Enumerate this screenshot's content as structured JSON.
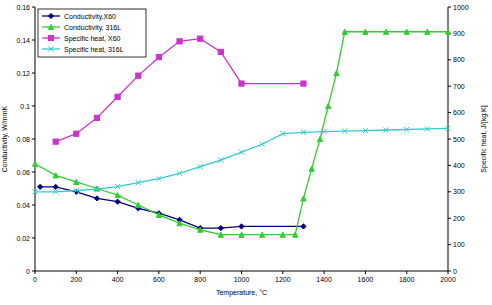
{
  "chart_data": {
    "type": "line",
    "x_label": "Temperature, °C",
    "y_label": "Conductivity, W/mmK",
    "y2_label": "Specific heat, J/[kg.K]",
    "xlim": [
      0,
      2000
    ],
    "xticks": [
      0,
      200,
      400,
      600,
      800,
      1000,
      1200,
      1400,
      1600,
      1800,
      2000
    ],
    "ylim": [
      0,
      0.16
    ],
    "yticks": [
      0,
      0.02,
      0.04,
      0.06,
      0.08,
      0.1,
      0.12,
      0.14,
      0.16
    ],
    "y2lim": [
      0,
      1000
    ],
    "y2ticks": [
      0,
      100,
      200,
      300,
      400,
      500,
      600,
      700,
      800,
      900,
      1000
    ],
    "legend": "upper-left",
    "grid": false,
    "series": [
      {
        "name": "Conductivity,X60",
        "color": "#000080",
        "marker": "diamond",
        "line_style": "solid",
        "x": [
          25,
          100,
          200,
          300,
          400,
          500,
          600,
          700,
          800,
          900,
          1000,
          1300
        ],
        "values": [
          0.051,
          0.051,
          0.048,
          0.044,
          0.042,
          0.038,
          0.035,
          0.031,
          0.026,
          0.026,
          0.027,
          0.027
        ]
      },
      {
        "name": "Conductivity, 316L",
        "color": "#33cc33",
        "marker": "triangle",
        "line_style": "solid",
        "x": [
          0,
          100,
          200,
          300,
          400,
          500,
          600,
          700,
          800,
          900,
          1000,
          1100,
          1200,
          1260,
          1300,
          1340,
          1380,
          1420,
          1460,
          1500,
          1600,
          1700,
          1800,
          1900,
          2000
        ],
        "values": [
          0.065,
          0.058,
          0.054,
          0.05,
          0.046,
          0.04,
          0.034,
          0.029,
          0.025,
          0.022,
          0.022,
          0.022,
          0.022,
          0.022,
          0.044,
          0.062,
          0.08,
          0.1,
          0.12,
          0.145,
          0.145,
          0.145,
          0.145,
          0.145,
          0.145
        ]
      },
      {
        "name": "Specific heat, X60",
        "color": "#cc33cc",
        "marker": "square",
        "line_style": "solid",
        "axis": "y2",
        "x": [
          100,
          200,
          300,
          400,
          500,
          600,
          700,
          800,
          900,
          1000,
          1300
        ],
        "values": [
          490,
          520,
          580,
          660,
          740,
          810,
          870,
          880,
          830,
          710,
          710
        ]
      },
      {
        "name": "Specific heat, 316L",
        "color": "#33cccc",
        "marker": "x",
        "line_style": "solid",
        "axis": "y2",
        "x": [
          0,
          100,
          200,
          300,
          400,
          500,
          600,
          700,
          800,
          900,
          1000,
          1100,
          1200,
          1300,
          1400,
          1500,
          1600,
          1700,
          1800,
          1900,
          2000
        ],
        "values": [
          300,
          300,
          305,
          310,
          320,
          335,
          350,
          370,
          395,
          420,
          450,
          480,
          520,
          525,
          528,
          530,
          532,
          534,
          536,
          538,
          540
        ]
      }
    ]
  }
}
